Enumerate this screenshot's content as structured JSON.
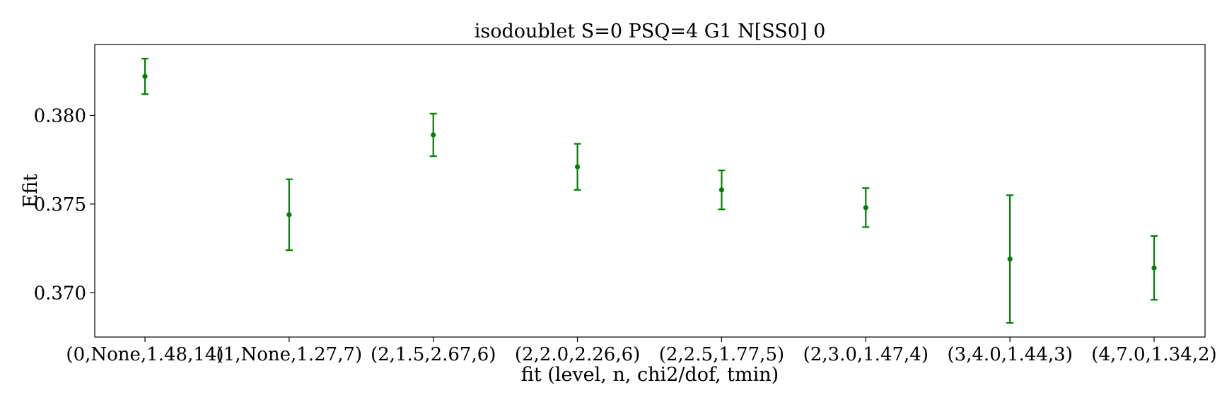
{
  "chart_data": {
    "type": "scatter",
    "title": "isodoublet S=0 PSQ=4 G1 N[SS0] 0",
    "xlabel": "fit (level, n, chi2/dof, tmin)",
    "ylabel": "Efit",
    "categories": [
      "(0,None,1.48,14)",
      "(1,None,1.27,7)",
      "(2,1.5,2.67,6)",
      "(2,2.0,2.26,6)",
      "(2,2.5,1.77,5)",
      "(2,3.0,1.47,4)",
      "(3,4.0,1.44,3)",
      "(4,7.0,1.34,2)"
    ],
    "series": [
      {
        "values": [
          0.3822,
          0.3744,
          0.3789,
          0.3771,
          0.3758,
          0.3748,
          0.3719,
          0.3714
        ],
        "errors": [
          0.001,
          0.002,
          0.0012,
          0.0013,
          0.0011,
          0.0011,
          0.0036,
          0.0018
        ],
        "color": "#008000"
      }
    ],
    "yticks": [
      "0.370",
      "0.375",
      "0.380"
    ],
    "ytick_values": [
      0.37,
      0.375,
      0.38
    ],
    "ylim": [
      0.3675,
      0.384
    ],
    "grid": false,
    "legend": "none"
  }
}
